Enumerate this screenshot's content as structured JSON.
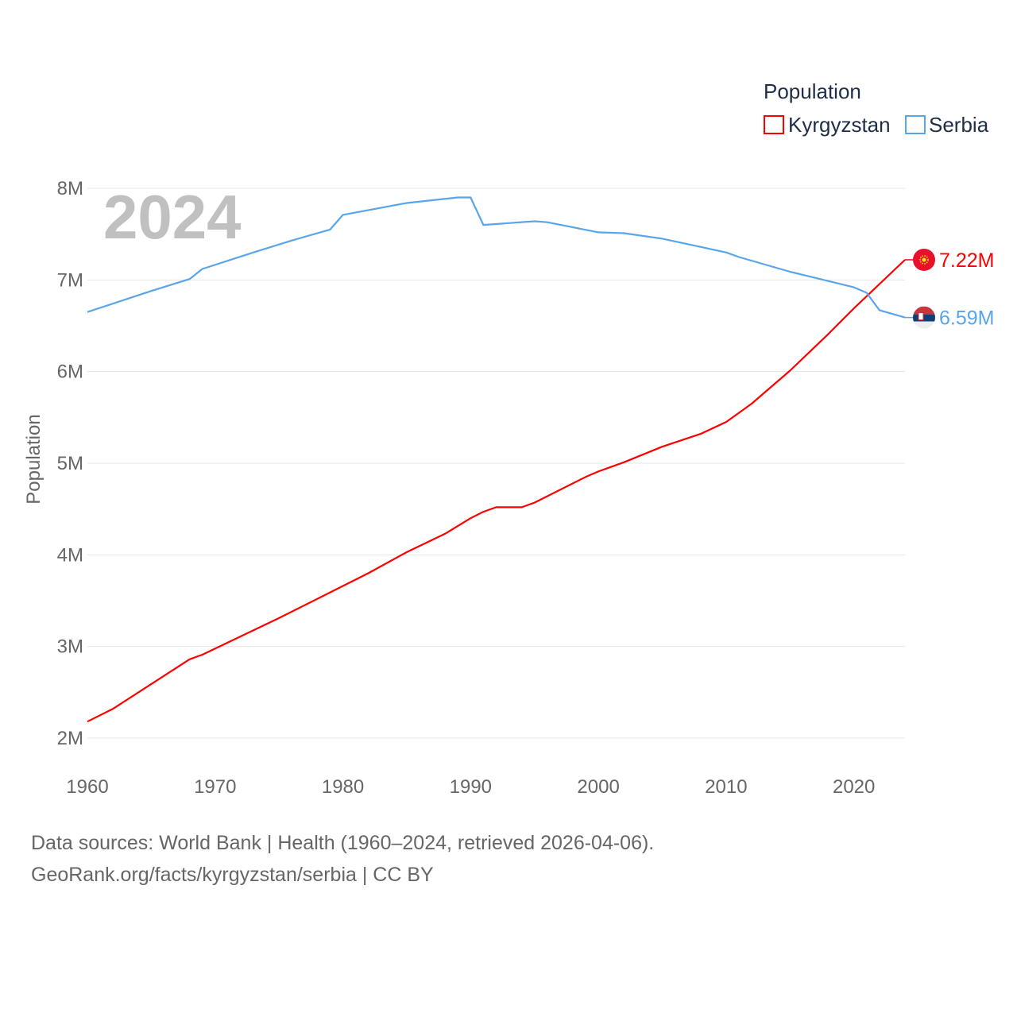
{
  "chart_data": {
    "type": "line",
    "title": "",
    "year_watermark": "2024",
    "xlabel": "",
    "ylabel": "Population",
    "xlim": [
      1960,
      2024
    ],
    "ylim": [
      2000000,
      8000000
    ],
    "x_ticks": [
      "1960",
      "1970",
      "1980",
      "1990",
      "2000",
      "2010",
      "2020"
    ],
    "y_ticks": [
      {
        "value": 2000000,
        "label": "2M"
      },
      {
        "value": 3000000,
        "label": "3M"
      },
      {
        "value": 4000000,
        "label": "4M"
      },
      {
        "value": 5000000,
        "label": "5M"
      },
      {
        "value": 6000000,
        "label": "6M"
      },
      {
        "value": 7000000,
        "label": "7M"
      },
      {
        "value": 8000000,
        "label": "8M"
      }
    ],
    "grid": true,
    "legend": {
      "title": "Population",
      "placement": "top-right"
    },
    "series": [
      {
        "name": "Kyrgyzstan",
        "color": "#ff0000",
        "end_label": "7.22M",
        "flag": "kyrgyzstan-flag",
        "x": [
          1960,
          1962,
          1968,
          1969,
          1975,
          1980,
          1982,
          1985,
          1988,
          1990,
          1991,
          1992,
          1994,
          1995,
          1999,
          2000,
          2002,
          2005,
          2008,
          2010,
          2011,
          2012,
          2015,
          2018,
          2019,
          2020,
          2024
        ],
        "y": [
          2180000,
          2320000,
          2860000,
          2910000,
          3310000,
          3660000,
          3800000,
          4030000,
          4230000,
          4400000,
          4470000,
          4520000,
          4520000,
          4570000,
          4850000,
          4910000,
          5010000,
          5180000,
          5320000,
          5450000,
          5550000,
          5650000,
          6010000,
          6410000,
          6550000,
          6690000,
          7220000
        ]
      },
      {
        "name": "Serbia",
        "color": "#5aa5ea",
        "end_label": "6.59M",
        "flag": "serbia-flag",
        "x": [
          1960,
          1965,
          1968,
          1969,
          1973,
          1976,
          1979,
          1980,
          1985,
          1989,
          1990,
          1991,
          1995,
          1996,
          2000,
          2002,
          2005,
          2010,
          2011,
          2015,
          2020,
          2021,
          2022,
          2024
        ],
        "y": [
          6650000,
          6880000,
          7010000,
          7120000,
          7300000,
          7430000,
          7550000,
          7710000,
          7840000,
          7900000,
          7900000,
          7600000,
          7640000,
          7630000,
          7520000,
          7510000,
          7450000,
          7300000,
          7250000,
          7090000,
          6920000,
          6860000,
          6670000,
          6590000
        ]
      }
    ]
  },
  "footer": {
    "line1": "Data sources: World Bank | Health (1960–2024, retrieved 2026-04-06).",
    "line2": "GeoRank.org/facts/kyrgyzstan/serbia | CC BY"
  }
}
